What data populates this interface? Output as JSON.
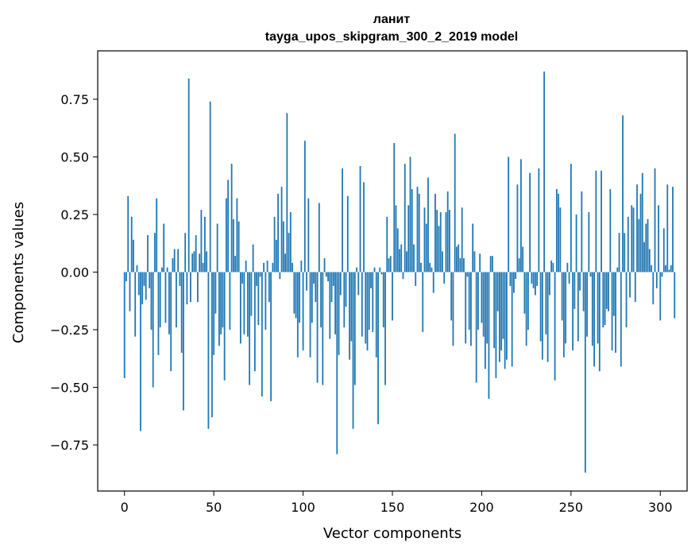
{
  "chart_data": {
    "type": "bar",
    "title": "ланит",
    "subtitle": "tayga_upos_skipgram_300_2_2019 model",
    "xlabel": "Vector components",
    "ylabel": "Components values",
    "xlim": [
      -15,
      315
    ],
    "ylim": [
      -0.95,
      0.96
    ],
    "xticks": [
      0,
      50,
      100,
      150,
      200,
      250,
      300
    ],
    "yticks": [
      -0.75,
      -0.5,
      -0.25,
      0.0,
      0.25,
      0.5,
      0.75
    ],
    "ytick_labels": [
      "−0.75",
      "−0.50",
      "−0.25",
      "0.00",
      "0.25",
      "0.50",
      "0.75"
    ],
    "grid": false,
    "color": "#1f77b4",
    "values": [
      -0.46,
      -0.04,
      0.33,
      -0.17,
      0.24,
      0.14,
      -0.28,
      0.03,
      -0.1,
      -0.69,
      -0.14,
      -0.06,
      -0.12,
      0.16,
      -0.07,
      -0.25,
      -0.5,
      0.17,
      0.32,
      -0.36,
      -0.24,
      0.02,
      0.21,
      -0.22,
      0.02,
      -0.27,
      -0.43,
      0.06,
      0.1,
      -0.24,
      0.1,
      -0.06,
      -0.35,
      -0.6,
      0.17,
      -0.14,
      0.84,
      -0.13,
      0.08,
      0.09,
      0.16,
      -0.13,
      0.08,
      0.27,
      0.04,
      0.24,
      0.09,
      -0.68,
      0.74,
      -0.63,
      -0.36,
      -0.18,
      0.21,
      -0.32,
      -0.27,
      -0.24,
      -0.47,
      0.32,
      0.4,
      -0.25,
      0.47,
      0.23,
      0.07,
      0.32,
      0.22,
      -0.31,
      -0.05,
      -0.27,
      0.05,
      -0.28,
      -0.49,
      -0.19,
      0.12,
      -0.43,
      -0.06,
      -0.23,
      -0.02,
      -0.54,
      0.04,
      -0.25,
      0.05,
      -0.13,
      -0.56,
      0.04,
      0.24,
      0.14,
      0.34,
      -0.03,
      0.37,
      0.22,
      0.08,
      0.69,
      0.17,
      0.26,
      0.04,
      -0.18,
      -0.2,
      -0.37,
      -0.22,
      0.05,
      -0.34,
      0.57,
      -0.08,
      0.32,
      -0.37,
      -0.22,
      -0.05,
      -0.13,
      -0.48,
      0.3,
      -0.24,
      -0.49,
      0.06,
      -0.02,
      -0.04,
      -0.29,
      -0.13,
      -0.06,
      -0.27,
      -0.79,
      -0.36,
      -0.1,
      0.45,
      -0.24,
      -0.15,
      0.33,
      -0.38,
      -0.3,
      -0.68,
      -0.49,
      0.02,
      -0.1,
      0.46,
      -0.28,
      0.39,
      -0.31,
      -0.34,
      -0.25,
      -0.07,
      -0.26,
      0.02,
      -0.37,
      -0.66,
      0.02,
      -0.01,
      -0.24,
      -0.49,
      0.24,
      0.06,
      0.07,
      -0.21,
      0.56,
      0.29,
      0.19,
      0.1,
      0.12,
      -0.03,
      0.47,
      0.09,
      0.29,
      0.5,
      0.36,
      0.12,
      -0.06,
      0.37,
      0.34,
      0.04,
      -0.26,
      0.28,
      0.21,
      0.41,
      0.04,
      0.02,
      -0.09,
      0.34,
      0.27,
      0.2,
      0.26,
      0.09,
      -0.05,
      0.26,
      0.35,
      0.27,
      -0.21,
      -0.32,
      0.6,
      0.11,
      0.12,
      0.06,
      0.28,
      0.06,
      -0.31,
      -0.02,
      -0.25,
      -0.32,
      0.21,
      0.09,
      -0.48,
      -0.25,
      0.08,
      -0.22,
      -0.28,
      -0.42,
      -0.31,
      -0.55,
      0.07,
      0.07,
      -0.33,
      -0.46,
      -0.17,
      -0.39,
      -0.34,
      -0.29,
      -0.42,
      -0.38,
      0.5,
      -0.06,
      -0.41,
      -0.09,
      -0.03,
      0.38,
      0.06,
      0.49,
      0.11,
      -0.18,
      -0.32,
      -0.25,
      0.43,
      -0.05,
      -0.07,
      -0.1,
      -0.06,
      0.45,
      -0.3,
      -0.38,
      0.87,
      -0.27,
      -0.39,
      -0.1,
      0.05,
      0.04,
      -0.47,
      0.36,
      0.34,
      0.28,
      -0.21,
      -0.37,
      -0.31,
      0.04,
      -0.05,
      0.47,
      -0.34,
      -0.16,
      0.25,
      -0.3,
      -0.08,
      0.35,
      -0.17,
      -0.87,
      -0.28,
      0.26,
      -0.02,
      -0.32,
      -0.41,
      0.44,
      -0.31,
      -0.43,
      0.44,
      -0.24,
      -0.23,
      -0.16,
      -0.17,
      0.36,
      -0.34,
      -0.19,
      -0.35,
      0.02,
      0.17,
      -0.41,
      0.68,
      0.17,
      -0.24,
      0.24,
      -0.11,
      0.29,
      0.28,
      -0.13,
      0.38,
      0.23,
      0.34,
      0.43,
      0.13,
      0.21,
      0.23,
      0.1,
      0.03,
      -0.14,
      0.45,
      -0.07,
      0.29,
      -0.21,
      -0.02,
      0.19,
      0.03,
      0.38,
      0.01,
      0.03,
      0.37,
      -0.2
    ]
  }
}
